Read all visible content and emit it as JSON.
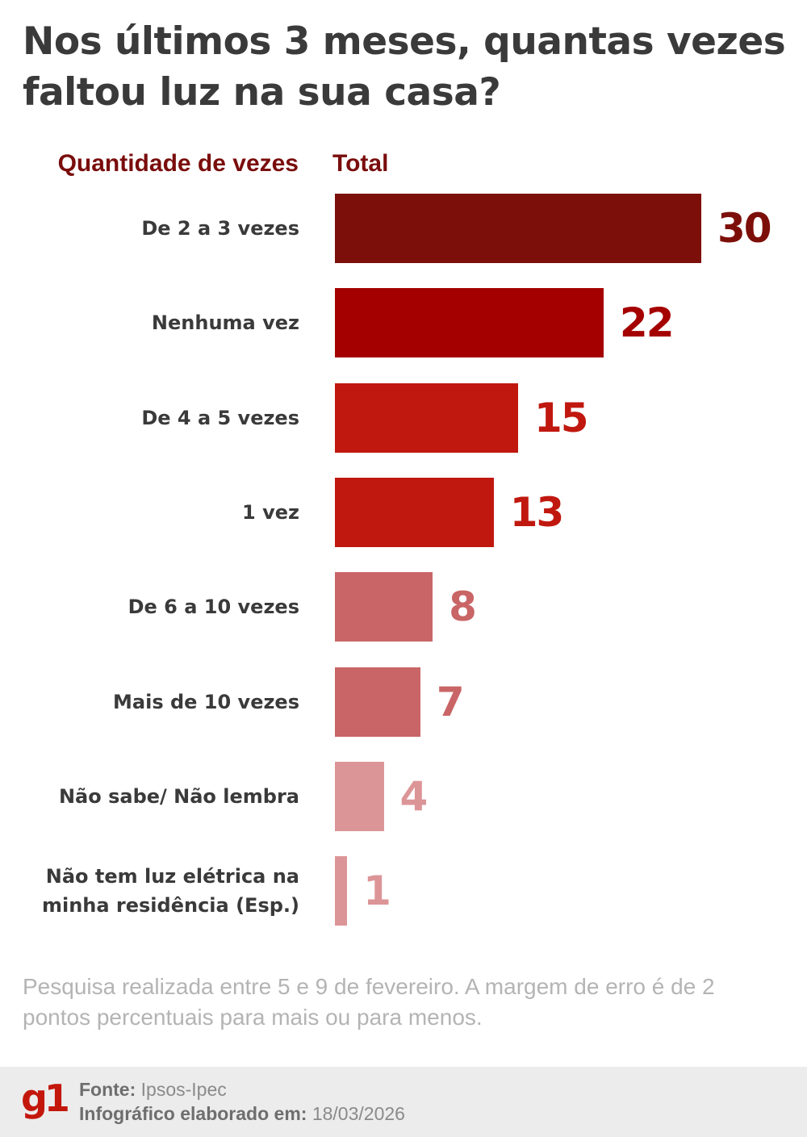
{
  "header": {
    "title": "Nos últimos 3 meses, quantas vezes faltou luz na sua casa?",
    "col_label_left": "Quantidade de vezes",
    "col_label_right": "Total"
  },
  "chart_data": {
    "type": "bar",
    "orientation": "horizontal",
    "title": "Nos últimos 3 meses, quantas vezes faltou luz na sua casa?",
    "xlabel": "Total",
    "ylabel": "Quantidade de vezes",
    "categories": [
      "De 2 a 3 vezes",
      "Nenhuma vez",
      "De 4 a 5 vezes",
      "1 vez",
      "De 6 a 10 vezes",
      "Mais de 10 vezes",
      "Não sabe/ Não lembra",
      "Não tem luz elétrica na minha residência (Esp.)"
    ],
    "values": [
      30,
      22,
      15,
      13,
      8,
      7,
      4,
      1
    ],
    "value_labels": [
      "30",
      "22",
      "15",
      "13",
      "8",
      "7",
      "4",
      "1"
    ],
    "colors": [
      "#7d0f0a",
      "#a50000",
      "#c0180f",
      "#c0180f",
      "#c96566",
      "#c96566",
      "#dc9597",
      "#dc9597"
    ],
    "label_colors": [
      "#7d0f0a",
      "#a50000",
      "#c0180f",
      "#c0180f",
      "#c96566",
      "#c96566",
      "#dc9597",
      "#dc9597"
    ],
    "grid": false,
    "legend": "none",
    "xlim": [
      0,
      30
    ]
  },
  "rows": [
    {
      "label": "De 2 a 3 vezes",
      "value": "30"
    },
    {
      "label": "Nenhuma vez",
      "value": "22"
    },
    {
      "label": "De 4 a 5 vezes",
      "value": "15"
    },
    {
      "label": "1 vez",
      "value": "13"
    },
    {
      "label": "De 6 a 10 vezes",
      "value": "8"
    },
    {
      "label": "Mais de 10 vezes",
      "value": "7"
    },
    {
      "label": "Não sabe/ Não lembra",
      "value": "4"
    },
    {
      "label": "Não tem luz elétrica na minha residência (Esp.)",
      "value": "1"
    }
  ],
  "note": "Pesquisa realizada entre 5 e 9 de fevereiro. A margem de erro é de 2 pontos percentuais para mais ou para menos.",
  "footer": {
    "logo": "g1",
    "source_label": "Fonte:",
    "source_value": "Ipsos-Ipec",
    "date_label": "Infográfico elaborado em:",
    "date_value": "18/03/2026"
  }
}
